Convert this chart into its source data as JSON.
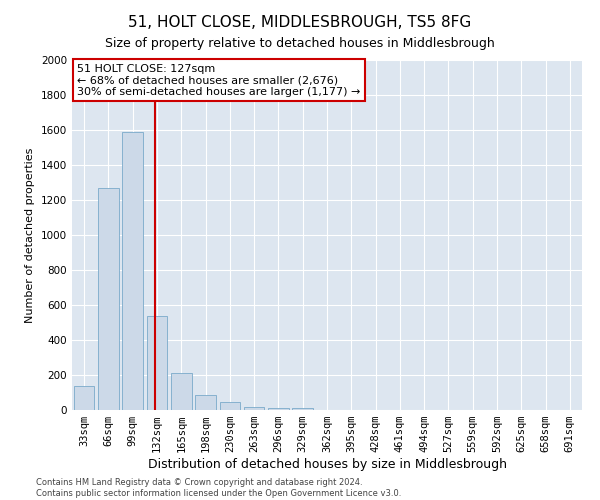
{
  "title": "51, HOLT CLOSE, MIDDLESBROUGH, TS5 8FG",
  "subtitle": "Size of property relative to detached houses in Middlesbrough",
  "xlabel": "Distribution of detached houses by size in Middlesbrough",
  "ylabel": "Number of detached properties",
  "categories": [
    "33sqm",
    "66sqm",
    "99sqm",
    "132sqm",
    "165sqm",
    "198sqm",
    "230sqm",
    "263sqm",
    "296sqm",
    "329sqm",
    "362sqm",
    "395sqm",
    "428sqm",
    "461sqm",
    "494sqm",
    "527sqm",
    "559sqm",
    "592sqm",
    "625sqm",
    "658sqm",
    "691sqm"
  ],
  "values": [
    140,
    1270,
    1590,
    540,
    210,
    85,
    45,
    20,
    10,
    10,
    0,
    0,
    0,
    0,
    0,
    0,
    0,
    0,
    0,
    0,
    0
  ],
  "bar_color": "#ccd9e8",
  "bar_edge_color": "#7aaaca",
  "vline_color": "#cc0000",
  "vline_index": 3,
  "annotation_text": "51 HOLT CLOSE: 127sqm\n← 68% of detached houses are smaller (2,676)\n30% of semi-detached houses are larger (1,177) →",
  "annotation_box_facecolor": "#ffffff",
  "annotation_box_edgecolor": "#cc0000",
  "ylim": [
    0,
    2000
  ],
  "yticks": [
    0,
    200,
    400,
    600,
    800,
    1000,
    1200,
    1400,
    1600,
    1800,
    2000
  ],
  "bg_color": "#dde6f0",
  "footer_line1": "Contains HM Land Registry data © Crown copyright and database right 2024.",
  "footer_line2": "Contains public sector information licensed under the Open Government Licence v3.0.",
  "title_fontsize": 11,
  "subtitle_fontsize": 9,
  "xlabel_fontsize": 9,
  "ylabel_fontsize": 8,
  "tick_fontsize": 7.5,
  "footer_fontsize": 6,
  "annotation_fontsize": 8
}
